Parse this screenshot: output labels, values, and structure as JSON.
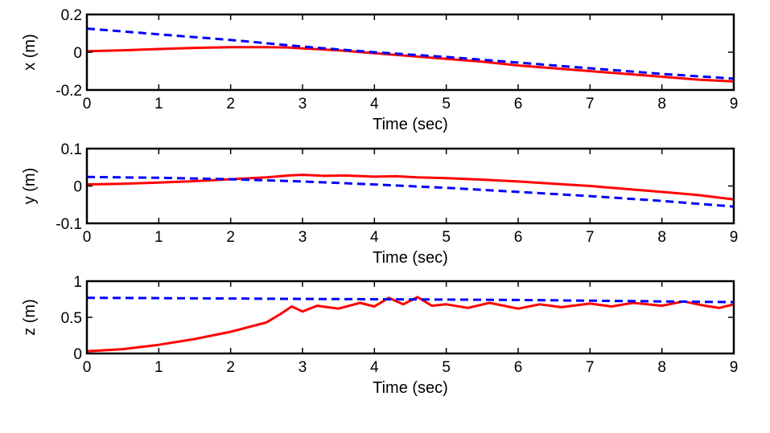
{
  "chart_data": [
    {
      "type": "line",
      "xlabel": "Time (sec)",
      "ylabel": "x (m)",
      "xlim": [
        0,
        9
      ],
      "ylim": [
        -0.2,
        0.2
      ],
      "xticks": [
        "0",
        "1",
        "2",
        "3",
        "4",
        "5",
        "6",
        "7",
        "8",
        "9"
      ],
      "yticks": [
        {
          "value": 0.2,
          "label": "0.2"
        },
        {
          "value": 0,
          "label": "0"
        },
        {
          "value": -0.2,
          "label": "-0.2"
        }
      ],
      "grid": false,
      "series": [
        {
          "style": "solid",
          "color": "#ff0000",
          "x": [
            0,
            0.5,
            1,
            1.5,
            2,
            2.5,
            2.8,
            3,
            3.5,
            4,
            4.5,
            5,
            5.5,
            6,
            6.5,
            7,
            7.5,
            8,
            8.5,
            9
          ],
          "y": [
            0.005,
            0.01,
            0.017,
            0.023,
            0.027,
            0.027,
            0.025,
            0.02,
            0.01,
            -0.005,
            -0.02,
            -0.035,
            -0.05,
            -0.07,
            -0.085,
            -0.1,
            -0.115,
            -0.13,
            -0.145,
            -0.155
          ]
        },
        {
          "style": "dashed",
          "color": "#0000ff",
          "x": [
            0,
            1,
            2,
            3,
            4,
            5,
            6,
            7,
            8,
            9
          ],
          "y": [
            0.125,
            0.095,
            0.065,
            0.03,
            0.0,
            -0.025,
            -0.055,
            -0.085,
            -0.115,
            -0.14
          ]
        }
      ]
    },
    {
      "type": "line",
      "xlabel": "Time (sec)",
      "ylabel": "y (m)",
      "xlim": [
        0,
        9
      ],
      "ylim": [
        -0.1,
        0.1
      ],
      "xticks": [
        "0",
        "1",
        "2",
        "3",
        "4",
        "5",
        "6",
        "7",
        "8",
        "9"
      ],
      "yticks": [
        {
          "value": 0.1,
          "label": "0.1"
        },
        {
          "value": 0,
          "label": "0"
        },
        {
          "value": -0.1,
          "label": "-0.1"
        }
      ],
      "grid": false,
      "series": [
        {
          "style": "solid",
          "color": "#ff0000",
          "x": [
            0,
            0.5,
            1,
            1.5,
            2,
            2.5,
            2.8,
            3,
            3.3,
            3.6,
            4,
            4.3,
            4.6,
            5,
            5.5,
            6,
            6.5,
            7,
            7.5,
            8,
            8.5,
            9
          ],
          "y": [
            0.004,
            0.006,
            0.009,
            0.013,
            0.018,
            0.023,
            0.028,
            0.03,
            0.027,
            0.028,
            0.025,
            0.026,
            0.023,
            0.021,
            0.017,
            0.012,
            0.006,
            0.0,
            -0.008,
            -0.016,
            -0.024,
            -0.036
          ]
        },
        {
          "style": "dashed",
          "color": "#0000ff",
          "x": [
            0,
            1,
            2,
            3,
            4,
            5,
            6,
            7,
            8,
            9
          ],
          "y": [
            0.024,
            0.022,
            0.018,
            0.012,
            0.004,
            -0.005,
            -0.016,
            -0.027,
            -0.04,
            -0.055
          ]
        }
      ]
    },
    {
      "type": "line",
      "xlabel": "Time (sec)",
      "ylabel": "z (m)",
      "xlim": [
        0,
        9
      ],
      "ylim": [
        0,
        1
      ],
      "xticks": [
        "0",
        "1",
        "2",
        "3",
        "4",
        "5",
        "6",
        "7",
        "8",
        "9"
      ],
      "yticks": [
        {
          "value": 1,
          "label": "1"
        },
        {
          "value": 0.5,
          "label": "0.5"
        },
        {
          "value": 0,
          "label": "0"
        }
      ],
      "grid": false,
      "series": [
        {
          "style": "solid",
          "color": "#ff0000",
          "x": [
            0,
            0.5,
            1,
            1.5,
            2,
            2.5,
            2.7,
            2.85,
            3,
            3.2,
            3.5,
            3.8,
            4,
            4.2,
            4.4,
            4.6,
            4.8,
            5,
            5.3,
            5.6,
            6,
            6.3,
            6.6,
            7,
            7.3,
            7.6,
            8,
            8.3,
            8.6,
            8.8,
            9
          ],
          "y": [
            0.03,
            0.06,
            0.12,
            0.2,
            0.3,
            0.43,
            0.55,
            0.65,
            0.58,
            0.66,
            0.62,
            0.7,
            0.65,
            0.77,
            0.68,
            0.78,
            0.66,
            0.68,
            0.63,
            0.7,
            0.62,
            0.68,
            0.64,
            0.69,
            0.65,
            0.7,
            0.66,
            0.72,
            0.66,
            0.63,
            0.68
          ]
        },
        {
          "style": "dashed",
          "color": "#0000ff",
          "x": [
            0,
            1,
            2,
            3,
            4,
            5,
            6,
            7,
            8,
            9
          ],
          "y": [
            0.77,
            0.765,
            0.76,
            0.755,
            0.75,
            0.745,
            0.74,
            0.73,
            0.72,
            0.71
          ]
        }
      ]
    }
  ]
}
